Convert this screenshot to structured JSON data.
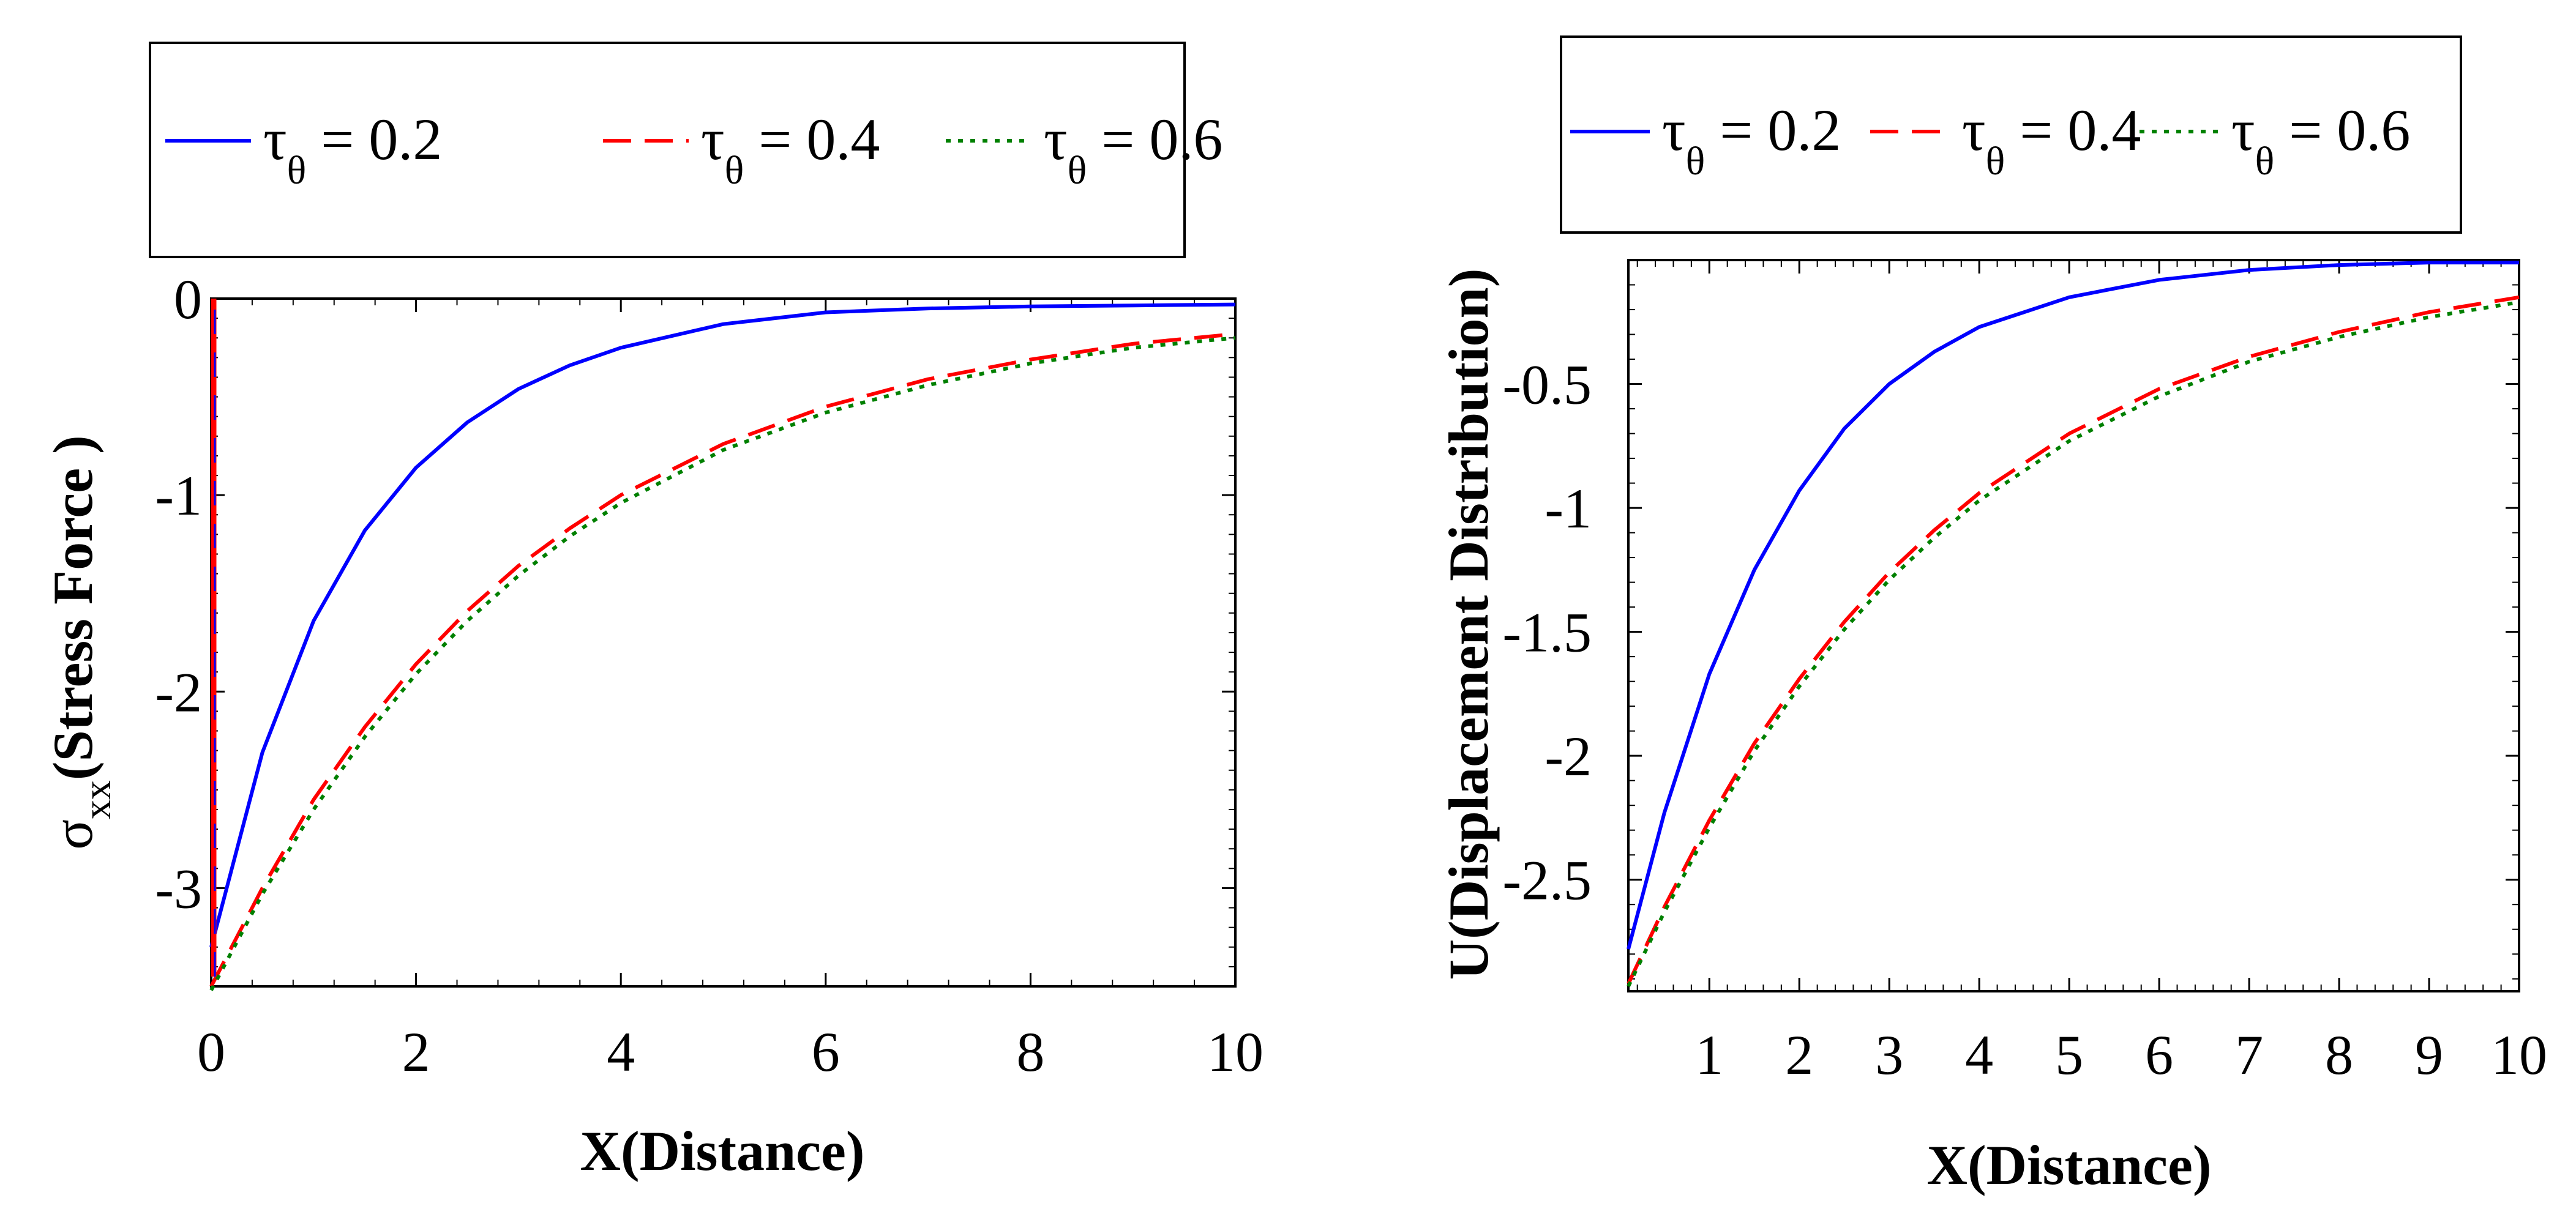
{
  "chart_data": [
    {
      "type": "line",
      "xlabel": "X(Distance)",
      "ylabel": "σxx(Stress Force )",
      "ylabel_symbol": "σ",
      "ylabel_sub": "xx",
      "ylabel_text": "(Stress Force )",
      "xlim": [
        0,
        10
      ],
      "ylim": [
        -3.5,
        0
      ],
      "xticks": [
        "0",
        "2",
        "4",
        "6",
        "8",
        "10"
      ],
      "yticks": [
        "0",
        "-1",
        "-2",
        "-3"
      ],
      "legend_position": "top",
      "legend": [
        {
          "symbol": "τ",
          "sub": "θ",
          "value": " = 0.2"
        },
        {
          "symbol": "τ",
          "sub": "θ",
          "value": " = 0.4"
        },
        {
          "symbol": "τ",
          "sub": "θ",
          "value": " = 0.6"
        }
      ],
      "series": [
        {
          "name": "τθ = 0.2",
          "color": "#0000ff",
          "style": "solid",
          "x": [
            0,
            0.5,
            1,
            1.5,
            2,
            2.5,
            3,
            3.5,
            4,
            5,
            6,
            7,
            8,
            9,
            10
          ],
          "values": [
            -3.3,
            -2.31,
            -1.64,
            -1.18,
            -0.86,
            -0.63,
            -0.46,
            -0.34,
            -0.25,
            -0.13,
            -0.07,
            -0.05,
            -0.04,
            -0.035,
            -0.03
          ]
        },
        {
          "name": "τθ = 0.4",
          "color": "#ff0000",
          "style": "dash",
          "x": [
            0,
            0.5,
            1,
            1.5,
            2,
            2.5,
            3,
            3.5,
            4,
            5,
            6,
            7,
            8,
            9,
            10
          ],
          "values": [
            -3.5,
            -3.0,
            -2.55,
            -2.18,
            -1.86,
            -1.59,
            -1.36,
            -1.17,
            -1.0,
            -0.74,
            -0.55,
            -0.41,
            -0.31,
            -0.23,
            -0.18
          ]
        },
        {
          "name": "τθ = 0.6",
          "color": "#008000",
          "style": "dot",
          "x": [
            0,
            0.5,
            1,
            1.5,
            2,
            2.5,
            3,
            3.5,
            4,
            5,
            6,
            7,
            8,
            9,
            10
          ],
          "values": [
            -3.52,
            -3.03,
            -2.6,
            -2.23,
            -1.91,
            -1.64,
            -1.41,
            -1.21,
            -1.04,
            -0.77,
            -0.58,
            -0.44,
            -0.33,
            -0.25,
            -0.2
          ]
        }
      ],
      "initial_spike": {
        "x": 0,
        "from": -3.45,
        "to": 0
      }
    },
    {
      "type": "line",
      "xlabel": "X(Distance)",
      "ylabel": "U(Displacement Distribution)",
      "xlim": [
        0.1,
        10
      ],
      "ylim": [
        -2.95,
        0
      ],
      "xticks": [
        "1",
        "2",
        "3",
        "4",
        "5",
        "6",
        "7",
        "8",
        "9",
        "10"
      ],
      "yticks": [
        "-0.5",
        "-1",
        "-1.5",
        "-2",
        "-2.5"
      ],
      "legend_position": "top",
      "legend": [
        {
          "symbol": "τ",
          "sub": "θ",
          "value": " = 0.2"
        },
        {
          "symbol": "τ",
          "sub": "θ",
          "value": " = 0.4"
        },
        {
          "symbol": "τ",
          "sub": "θ",
          "value": " = 0.6"
        }
      ],
      "series": [
        {
          "name": "τθ = 0.2",
          "color": "#0000ff",
          "style": "solid",
          "x": [
            0.1,
            0.5,
            1,
            1.5,
            2,
            2.5,
            3,
            3.5,
            4,
            5,
            6,
            7,
            8,
            9,
            10
          ],
          "values": [
            -2.78,
            -2.23,
            -1.67,
            -1.25,
            -0.93,
            -0.68,
            -0.5,
            -0.37,
            -0.27,
            -0.15,
            -0.08,
            -0.04,
            -0.02,
            -0.01,
            -0.01
          ]
        },
        {
          "name": "τθ = 0.4",
          "color": "#ff0000",
          "style": "dash",
          "x": [
            0.1,
            0.5,
            1,
            1.5,
            2,
            2.5,
            3,
            3.5,
            4,
            5,
            6,
            7,
            8,
            9,
            10
          ],
          "values": [
            -2.92,
            -2.61,
            -2.26,
            -1.95,
            -1.69,
            -1.46,
            -1.26,
            -1.09,
            -0.94,
            -0.7,
            -0.52,
            -0.39,
            -0.29,
            -0.21,
            -0.15
          ]
        },
        {
          "name": "τθ = 0.6",
          "color": "#008000",
          "style": "dot",
          "x": [
            0.1,
            0.5,
            1,
            1.5,
            2,
            2.5,
            3,
            3.5,
            4,
            5,
            6,
            7,
            8,
            9,
            10
          ],
          "values": [
            -2.93,
            -2.63,
            -2.29,
            -1.98,
            -1.72,
            -1.49,
            -1.29,
            -1.12,
            -0.97,
            -0.73,
            -0.55,
            -0.41,
            -0.31,
            -0.23,
            -0.17
          ]
        }
      ]
    }
  ]
}
